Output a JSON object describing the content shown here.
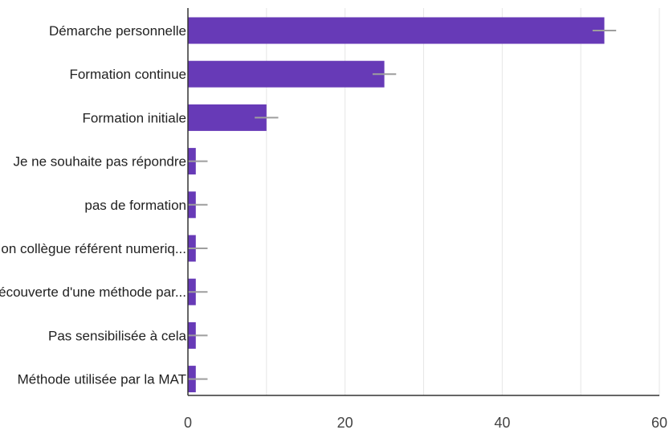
{
  "chart_data": {
    "type": "bar",
    "orientation": "horizontal",
    "categories": [
      "Démarche personnelle",
      "Formation continue",
      "Formation initiale",
      "Je ne souhaite pas répondre",
      "pas de formation",
      "Mon collègue référent numeriq...",
      "Découverte d'une méthode par...",
      "Pas sensibilisée à cela",
      "Méthode utilisée par la MAT"
    ],
    "values": [
      53,
      25,
      10,
      1,
      1,
      1,
      1,
      1,
      1
    ],
    "error_extent": [
      1.5,
      1.5,
      1.5,
      1.5,
      1.5,
      1.5,
      1.5,
      1.5,
      1.5
    ],
    "xlim": [
      0,
      60
    ],
    "xticks": [
      0,
      20,
      40,
      60
    ],
    "x_tick_labels": [
      "0",
      "20",
      "40",
      "60"
    ],
    "grid": true,
    "title": "",
    "xlabel": "",
    "ylabel": "",
    "colors": {
      "bar": "#673ab7",
      "error": "#9e9e9e",
      "grid": "#e6e6e6",
      "axis": "#333333"
    }
  }
}
